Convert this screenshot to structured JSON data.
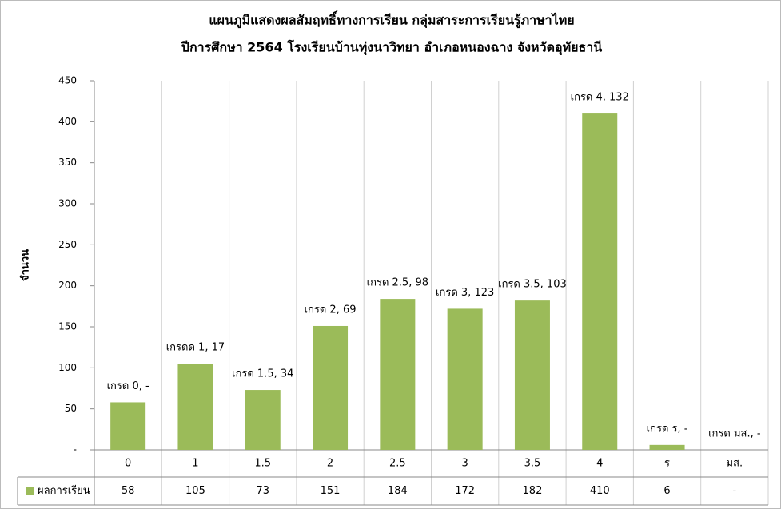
{
  "chart_data": {
    "type": "bar",
    "title": [
      "แผนภูมิแสดงผลสัมฤทธิ์ทางการเรียน กลุ่มสาระการเรียนรู้ภาษาไทย",
      "ปีการศึกษา 2564 โรงเรียนบ้านทุ่งนาวิทยา อำเภอหนองฉาง จังหวัดอุทัยธานี"
    ],
    "y_label": "จำนวน",
    "categories": [
      "0",
      "1",
      "1.5",
      "2",
      "2.5",
      "3",
      "3.5",
      "4",
      "ร",
      "มส."
    ],
    "series": [
      {
        "name": "ผลการเรียน",
        "color": "#9bbb59",
        "values": [
          58,
          105,
          73,
          151,
          184,
          172,
          182,
          410,
          6,
          null
        ],
        "value_labels": [
          "58",
          "105",
          "73",
          "151",
          "184",
          "172",
          "182",
          "410",
          "6",
          "-"
        ]
      }
    ],
    "annotations": [
      "เกรด 0,  -",
      "เกรดด 1,  17",
      "เกรด 1.5,  34",
      "เกรด 2,  69",
      "เกรด 2.5,  98",
      "เกรด 3,  123",
      "เกรด 3.5,  103",
      "เกรด 4,  132",
      "เกรด ร,  -",
      "เกรด มส.,  -"
    ],
    "ylim": [
      0,
      450
    ],
    "yticks": [
      {
        "value": 0,
        "label": "-"
      },
      50,
      100,
      150,
      200,
      250,
      300,
      350,
      400,
      450
    ],
    "grid": true
  }
}
